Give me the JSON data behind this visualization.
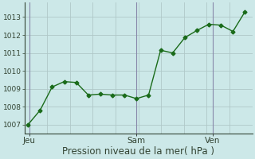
{
  "x": [
    0,
    0.5,
    1.0,
    1.5,
    2.0,
    2.5,
    3.0,
    3.5,
    4.0,
    4.5,
    5.0,
    5.5,
    6.0,
    6.5,
    7.0,
    7.5,
    8.0,
    8.5,
    9.0
  ],
  "y": [
    1007.0,
    1007.8,
    1009.1,
    1009.4,
    1009.35,
    1008.65,
    1008.7,
    1008.65,
    1008.65,
    1008.45,
    1008.65,
    1011.15,
    1011.0,
    1011.85,
    1012.25,
    1012.6,
    1012.55,
    1012.2,
    1013.3
  ],
  "line_color": "#1a6b1a",
  "marker": "D",
  "markersize": 2.5,
  "linewidth": 1.0,
  "background_color": "#cce8e8",
  "grid_color_major": "#b0c8c8",
  "grid_color_minor": "#c4dcdc",
  "tick_color": "#334433",
  "xlabel": "Pression niveau de la mer( hPa )",
  "xlabel_fontsize": 8.5,
  "yticks": [
    1007,
    1008,
    1009,
    1010,
    1011,
    1012,
    1013
  ],
  "ylim": [
    1006.5,
    1013.8
  ],
  "xlim": [
    -0.15,
    9.3
  ],
  "xtick_positions": [
    0.05,
    4.5,
    7.65
  ],
  "xtick_labels": [
    "Jeu",
    "Sam",
    "Ven"
  ],
  "vlines": [
    0.05,
    4.5,
    7.65
  ],
  "vline_color": "#8888aa",
  "spine_color": "#334433"
}
